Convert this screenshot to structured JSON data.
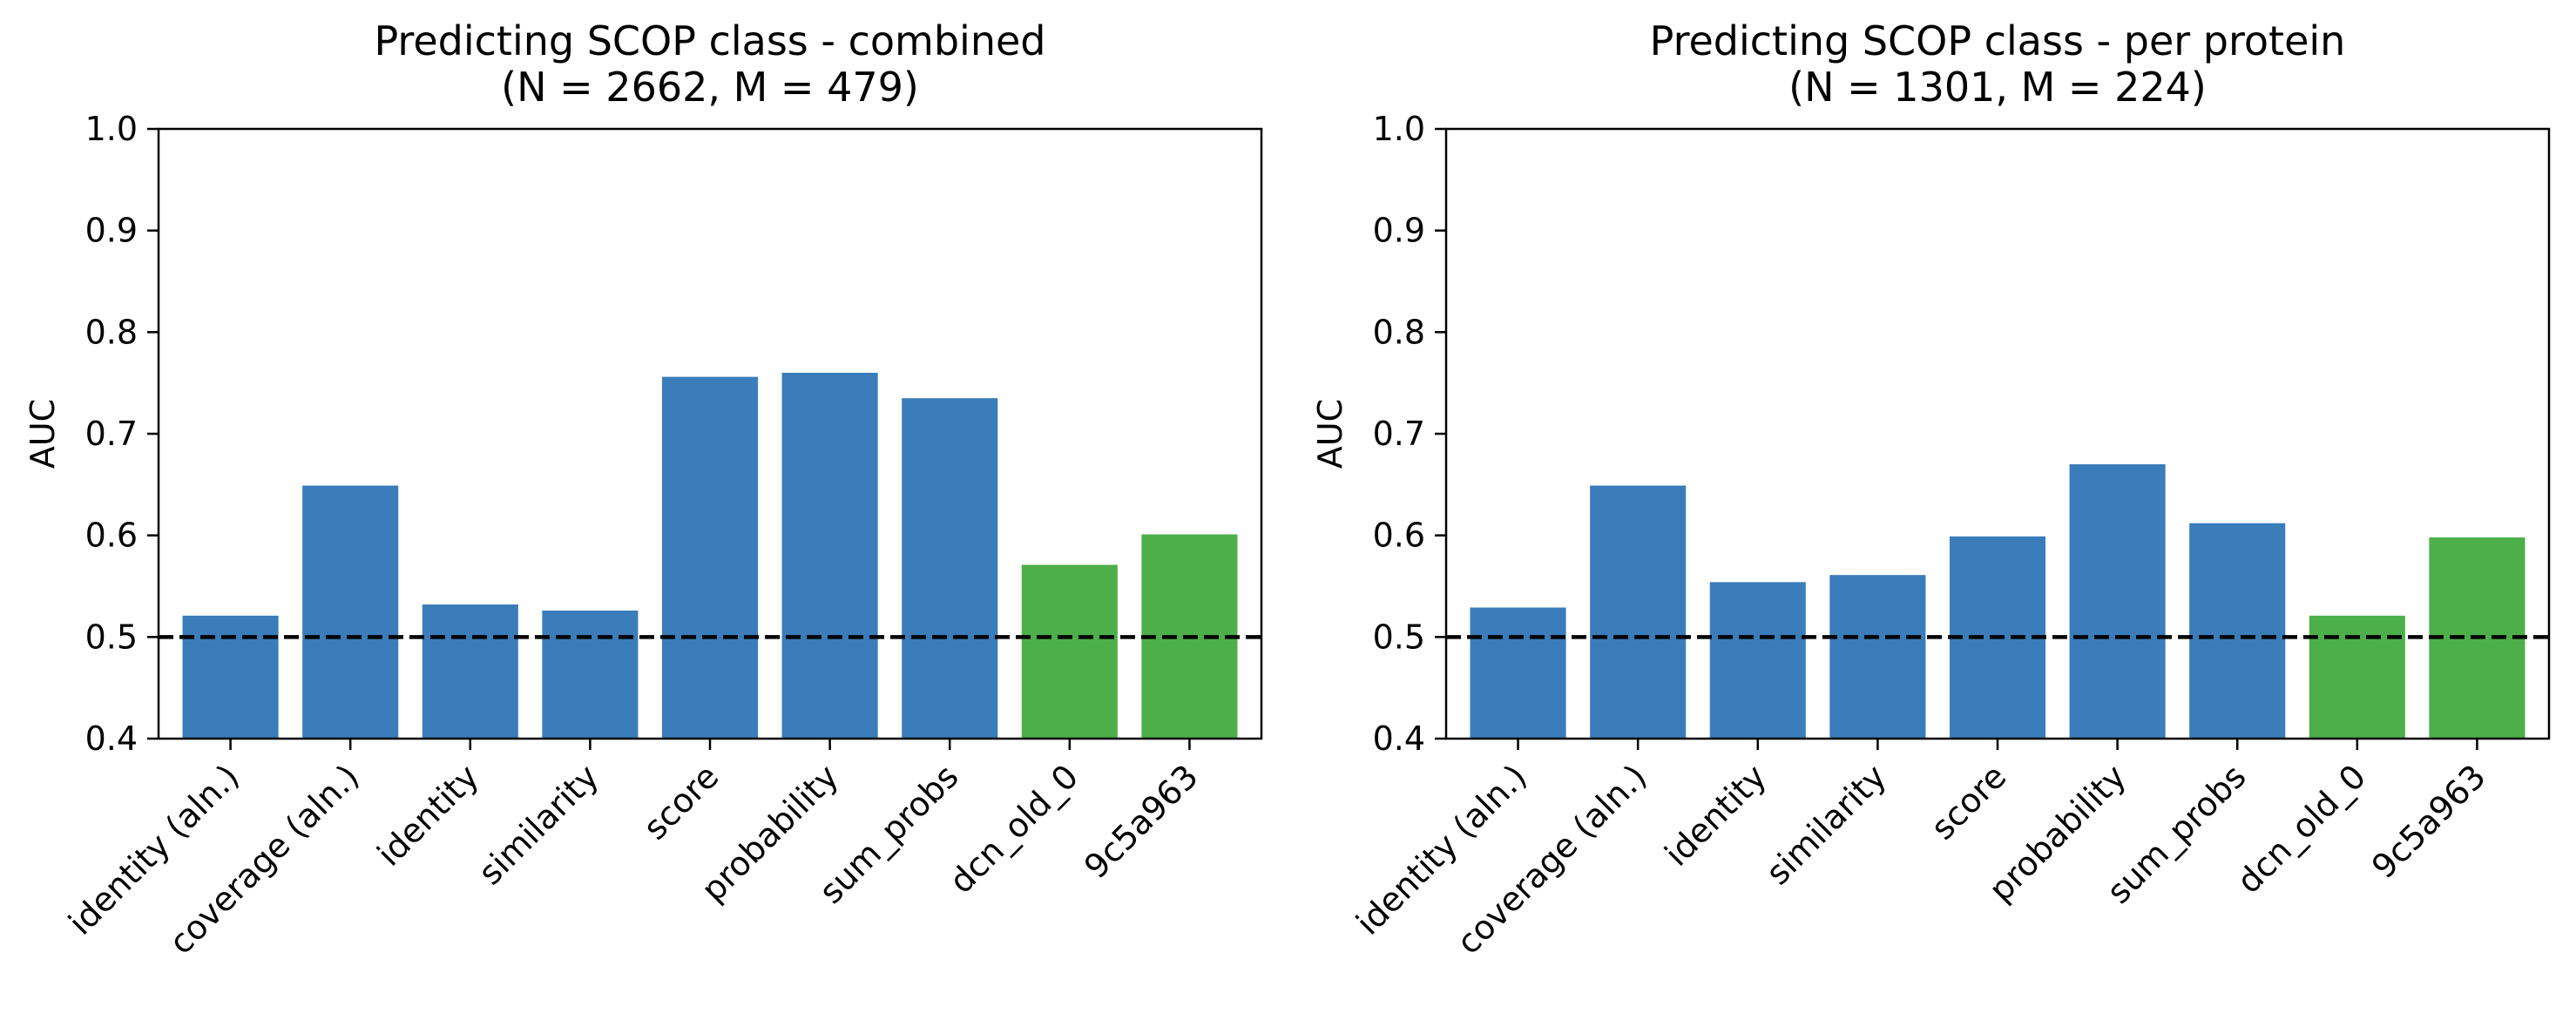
{
  "colors": {
    "baseline_bar": "#3a7dba",
    "model_bar": "#4daf4a",
    "reference_line": "#000000"
  },
  "chart_data": [
    {
      "type": "bar",
      "title": [
        "Predicting SCOP class - combined",
        "(N = 2662, M = 479)"
      ],
      "xlabel": "",
      "ylabel": "AUC",
      "ylim": [
        0.4,
        1.0
      ],
      "yticks": [
        "0.4",
        "0.5",
        "0.6",
        "0.7",
        "0.8",
        "0.9",
        "1.0"
      ],
      "categories": [
        "identity (aln.)",
        "coverage (aln.)",
        "identity",
        "similarity",
        "score",
        "probability",
        "sum_probs",
        "dcn_old_0",
        "9c5a963"
      ],
      "values": [
        0.521,
        0.649,
        0.532,
        0.526,
        0.756,
        0.76,
        0.735,
        0.571,
        0.601
      ],
      "bar_colors": [
        "#3a7dba",
        "#3a7dba",
        "#3a7dba",
        "#3a7dba",
        "#3a7dba",
        "#3a7dba",
        "#3a7dba",
        "#4daf4a",
        "#4daf4a"
      ],
      "reference_line": 0.5,
      "grid": false
    },
    {
      "type": "bar",
      "title": [
        "Predicting SCOP class - per protein",
        "(N = 1301, M = 224)"
      ],
      "xlabel": "",
      "ylabel": "AUC",
      "ylim": [
        0.4,
        1.0
      ],
      "yticks": [
        "0.4",
        "0.5",
        "0.6",
        "0.7",
        "0.8",
        "0.9",
        "1.0"
      ],
      "categories": [
        "identity (aln.)",
        "coverage (aln.)",
        "identity",
        "similarity",
        "score",
        "probability",
        "sum_probs",
        "dcn_old_0",
        "9c5a963"
      ],
      "values": [
        0.529,
        0.649,
        0.554,
        0.561,
        0.599,
        0.67,
        0.612,
        0.521,
        0.598
      ],
      "bar_colors": [
        "#3a7dba",
        "#3a7dba",
        "#3a7dba",
        "#3a7dba",
        "#3a7dba",
        "#3a7dba",
        "#3a7dba",
        "#4daf4a",
        "#4daf4a"
      ],
      "reference_line": 0.5,
      "grid": false
    }
  ]
}
